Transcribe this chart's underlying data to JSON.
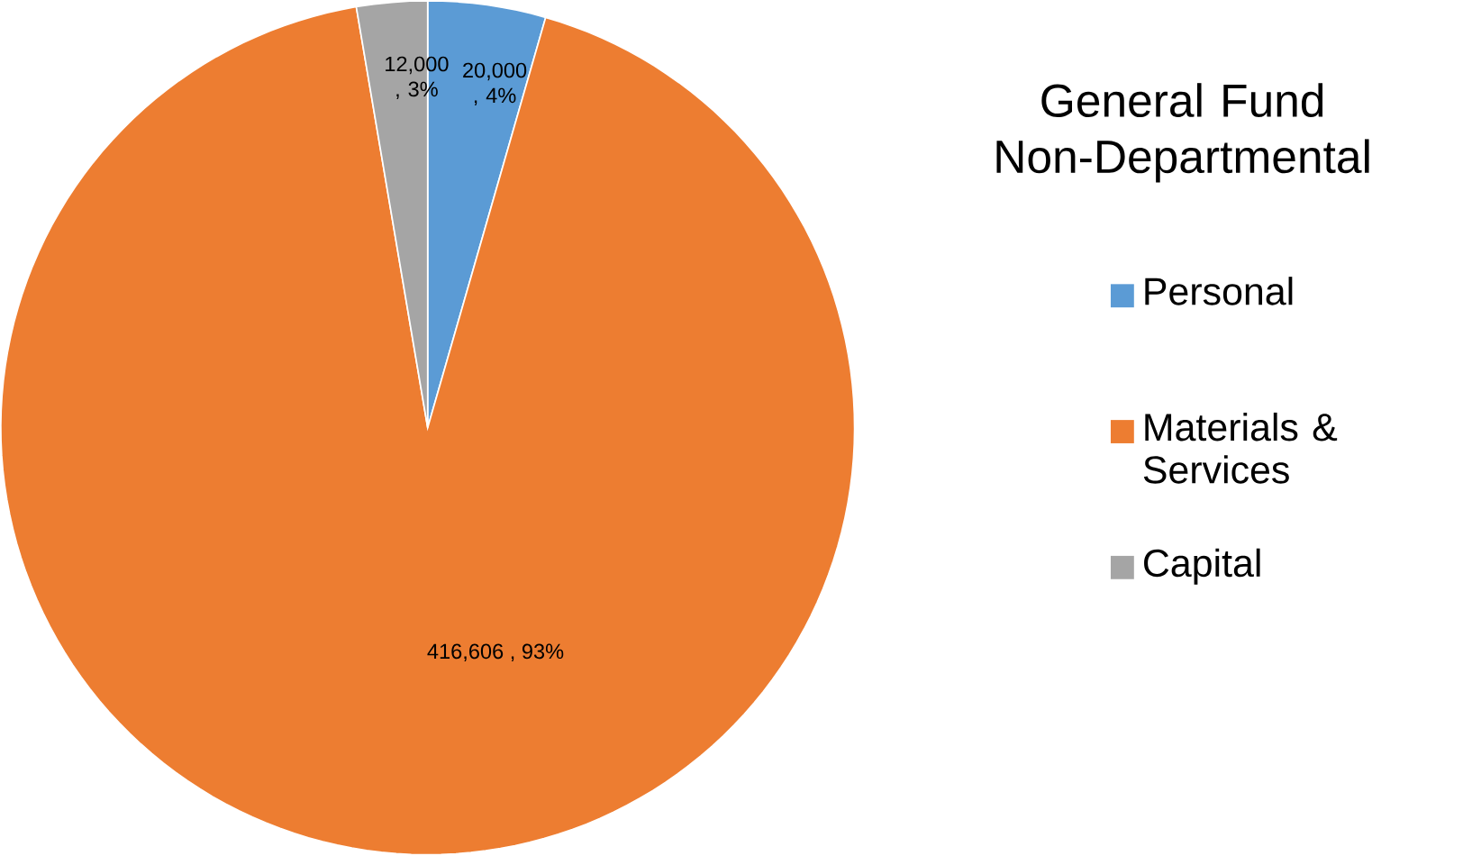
{
  "chart_data": {
    "type": "pie",
    "title": "General Fund Non-Departmental",
    "categories": [
      "Personal",
      "Materials & Services",
      "Capital"
    ],
    "values": [
      20000,
      416606,
      12000
    ],
    "colors": [
      "#5b9bd5",
      "#ed7d31",
      "#a5a5a5"
    ],
    "value_labels": [
      "20,000 , 4%",
      "416,606 , 93%",
      "12,000 , 3%"
    ],
    "legend": "right"
  }
}
